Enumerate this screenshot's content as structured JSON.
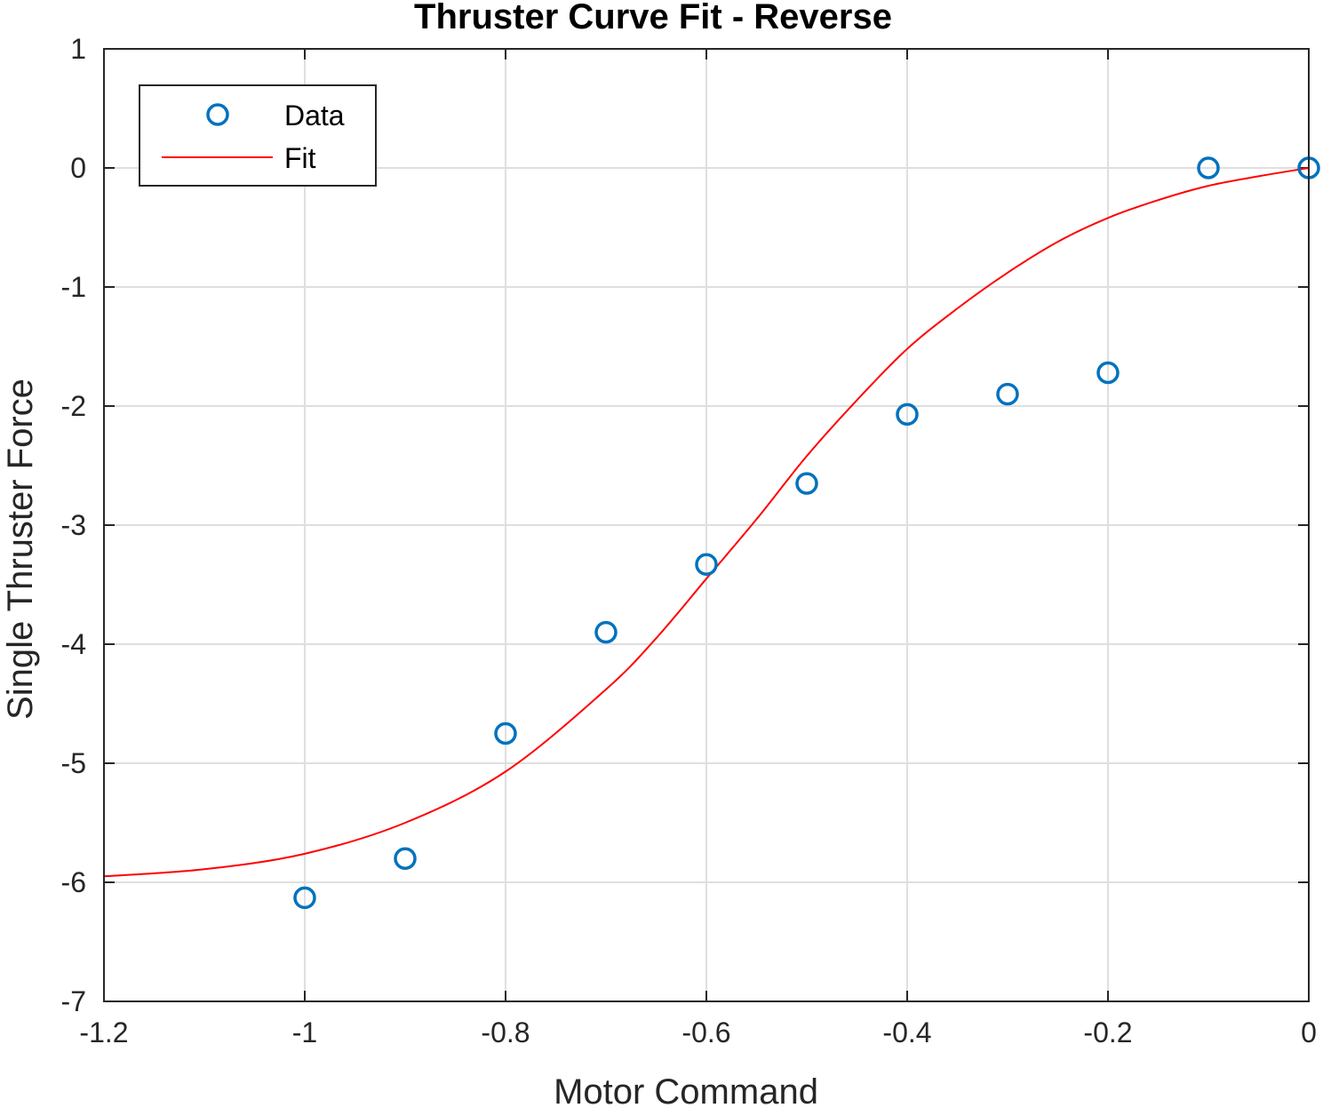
{
  "chart_data": {
    "type": "scatter",
    "title": "Thruster Curve Fit - Reverse",
    "xlabel": "Motor Command",
    "ylabel": "Single Thruster Force",
    "xlim": [
      -1.2,
      0
    ],
    "ylim": [
      -7,
      1
    ],
    "xticks": [
      -1.2,
      -1,
      -0.8,
      -0.6,
      -0.4,
      -0.2,
      0
    ],
    "xtick_labels": [
      "-1.2",
      "-1",
      "-0.8",
      "-0.6",
      "-0.4",
      "-0.2",
      "0"
    ],
    "yticks": [
      1,
      0,
      -1,
      -2,
      -3,
      -4,
      -5,
      -6,
      -7
    ],
    "ytick_labels": [
      "1",
      "0",
      "-1",
      "-2",
      "-3",
      "-4",
      "-5",
      "-6",
      "-7"
    ],
    "grid": true,
    "legend_position": "top-left",
    "series": [
      {
        "name": "Data",
        "style": "markers",
        "marker": "circle",
        "color": "#0072bd",
        "x": [
          -1.0,
          -0.9,
          -0.8,
          -0.7,
          -0.6,
          -0.5,
          -0.4,
          -0.3,
          -0.2,
          -0.1,
          0.0
        ],
        "y": [
          -6.13,
          -5.8,
          -4.75,
          -3.9,
          -3.33,
          -2.65,
          -2.07,
          -1.9,
          -1.72,
          0.0,
          0.0
        ]
      },
      {
        "name": "Fit",
        "style": "line",
        "color": "#ff0000",
        "x": [
          -1.2,
          -1.1,
          -1.0,
          -0.9,
          -0.8,
          -0.7,
          -0.65,
          -0.6,
          -0.55,
          -0.5,
          -0.45,
          -0.4,
          -0.35,
          -0.3,
          -0.25,
          -0.2,
          -0.15,
          -0.1,
          -0.05,
          0.0
        ],
        "y": [
          -5.95,
          -5.89,
          -5.76,
          -5.5,
          -5.07,
          -4.38,
          -3.95,
          -3.45,
          -2.95,
          -2.42,
          -1.95,
          -1.52,
          -1.18,
          -0.88,
          -0.62,
          -0.42,
          -0.27,
          -0.15,
          -0.07,
          0.0
        ]
      }
    ]
  }
}
